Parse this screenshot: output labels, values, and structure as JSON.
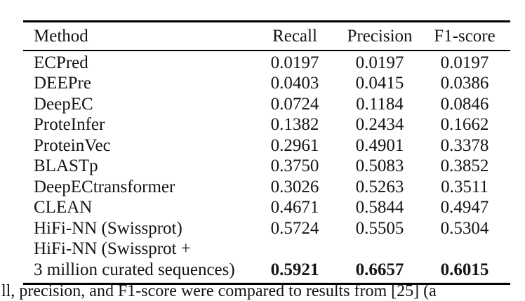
{
  "colors": {
    "text": "#141414",
    "rule": "#000000",
    "background": "#ffffff"
  },
  "table": {
    "columns": [
      {
        "label": "Method"
      },
      {
        "label": "Recall"
      },
      {
        "label": "Precision"
      },
      {
        "label": "F1-score"
      }
    ],
    "rows": [
      {
        "method": "ECPred",
        "recall": "0.0197",
        "precision": "0.0197",
        "f1": "0.0197"
      },
      {
        "method": "DEEPre",
        "recall": "0.0403",
        "precision": "0.0415",
        "f1": "0.0386"
      },
      {
        "method": "DeepEC",
        "recall": "0.0724",
        "precision": "0.1184",
        "f1": "0.0846"
      },
      {
        "method": "ProteInfer",
        "recall": "0.1382",
        "precision": "0.2434",
        "f1": "0.1662"
      },
      {
        "method": "ProteinVec",
        "recall": "0.2961",
        "precision": "0.4901",
        "f1": "0.3378"
      },
      {
        "method": "BLASTp",
        "recall": "0.3750",
        "precision": "0.5083",
        "f1": "0.3852"
      },
      {
        "method": "DeepECtransformer",
        "recall": "0.3026",
        "precision": "0.5263",
        "f1": "0.3511"
      },
      {
        "method": "CLEAN",
        "recall": "0.4671",
        "precision": "0.5844",
        "f1": "0.4947"
      },
      {
        "method": "HiFi-NN (Swissprot)",
        "recall": "0.5724",
        "precision": "0.5505",
        "f1": "0.5304"
      }
    ],
    "last_row": {
      "method_line1": "HiFi-NN (Swissprot +",
      "method_line2": "3 million curated sequences)",
      "recall": "0.5921",
      "precision": "0.6657",
      "f1": "0.6015"
    }
  },
  "caption_fragment": "ll, precision, and F1-score were compared to results from [25] (a"
}
